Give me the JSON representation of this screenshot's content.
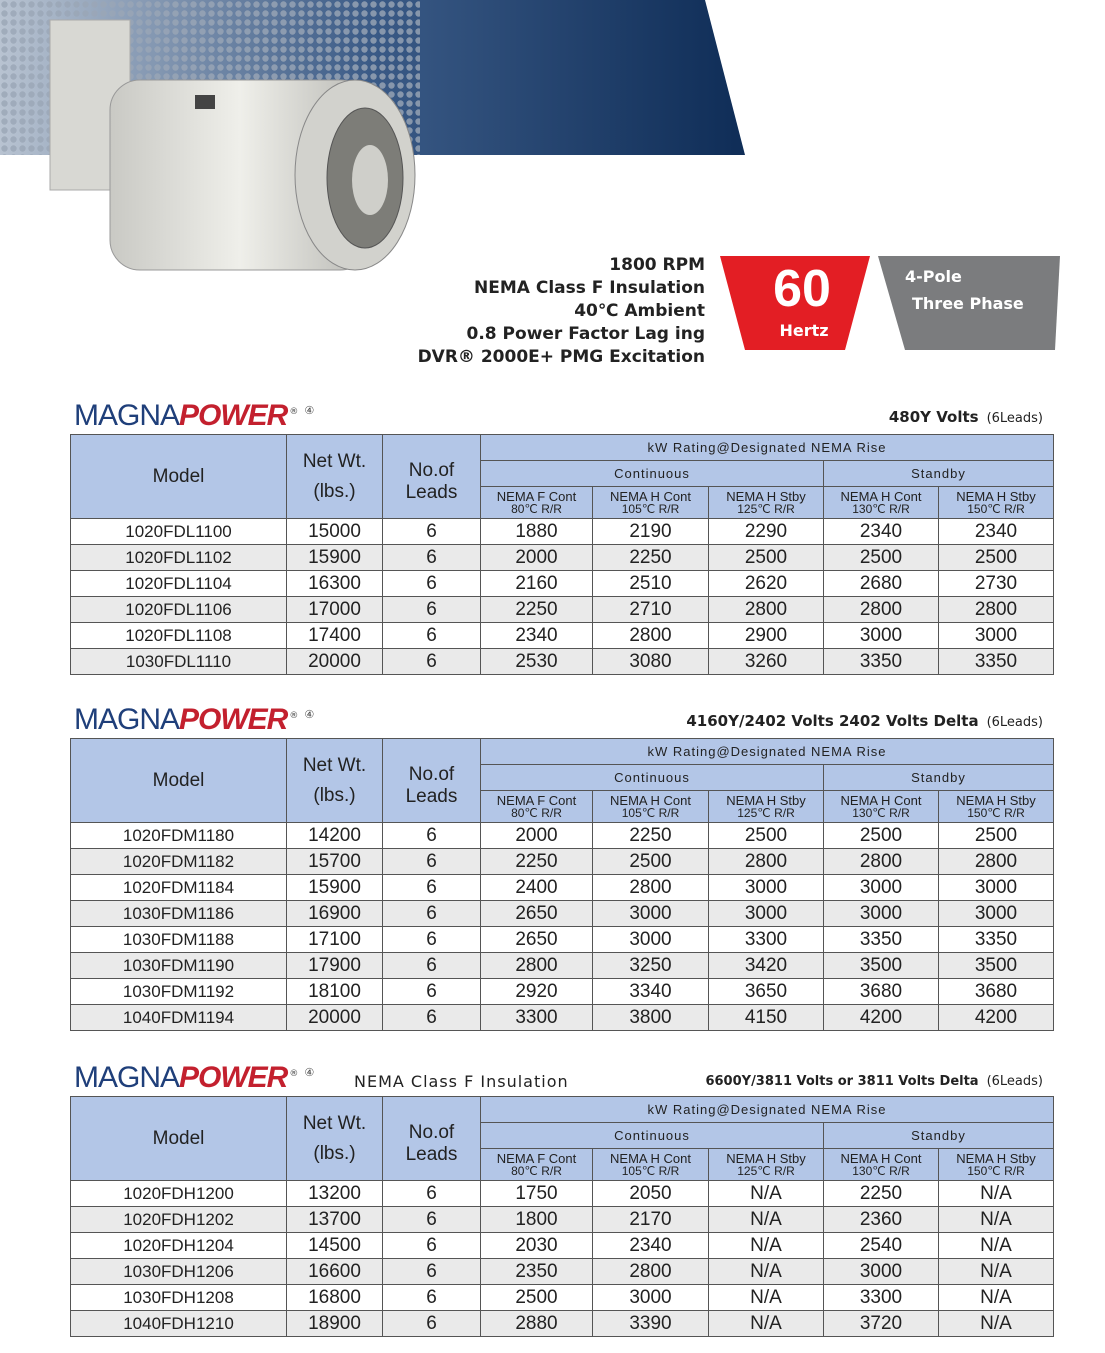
{
  "header": {
    "specs": [
      "1800 RPM",
      "NEMA Class F Insulation",
      "40℃ Ambient",
      "0.8 Power Factor Lag ing",
      "DVR® 2000E+ PMG Excitation"
    ],
    "badge": {
      "frequency": "60",
      "unit": "Hertz",
      "poles": "4-Pole",
      "phase": "Three Phase"
    }
  },
  "brand": {
    "magna": "MAGNA",
    "power": "POWER",
    "registered": "®",
    "mark": "④"
  },
  "table_header": {
    "model": "Model",
    "weight": "Net Wt.",
    "weight_unit": "(lbs.)",
    "leads_1": "No.of",
    "leads_2": "Leads",
    "rating": "kW Rating@Designated NEMA Rise",
    "continuous": "Continuous",
    "standby": "Standby",
    "columns": [
      {
        "name": "NEMA F Cont",
        "rise": "80℃ R/R"
      },
      {
        "name": "NEMA H Cont",
        "rise": "105℃ R/R"
      },
      {
        "name": "NEMA H Stby",
        "rise": "125℃ R/R"
      },
      {
        "name": "NEMA H Cont",
        "rise": "130℃ R/R"
      },
      {
        "name": "NEMA H Stby",
        "rise": "150℃ R/R"
      }
    ]
  },
  "sections": [
    {
      "voltage": "480Y Volts",
      "leads_note": "(6Leads)",
      "rows": [
        [
          "1020FDL1100",
          15000,
          6,
          1880,
          2190,
          2290,
          2340,
          2340
        ],
        [
          "1020FDL1102",
          15900,
          6,
          2000,
          2250,
          2500,
          2500,
          2500
        ],
        [
          "1020FDL1104",
          16300,
          6,
          2160,
          2510,
          2620,
          2680,
          2730
        ],
        [
          "1020FDL1106",
          17000,
          6,
          2250,
          2710,
          2800,
          2800,
          2800
        ],
        [
          "1020FDL1108",
          17400,
          6,
          2340,
          2800,
          2900,
          3000,
          3000
        ],
        [
          "1030FDL1110",
          20000,
          6,
          2530,
          3080,
          3260,
          3350,
          3350
        ]
      ]
    },
    {
      "voltage": "4160Y/2402 Volts  2402 Volts Delta",
      "leads_note": "(6Leads)",
      "rows": [
        [
          "1020FDM1180",
          14200,
          6,
          2000,
          2250,
          2500,
          2500,
          2500
        ],
        [
          "1020FDM1182",
          15700,
          6,
          2250,
          2500,
          2800,
          2800,
          2800
        ],
        [
          "1020FDM1184",
          15900,
          6,
          2400,
          2800,
          3000,
          3000,
          3000
        ],
        [
          "1030FDM1186",
          16900,
          6,
          2650,
          3000,
          3000,
          3000,
          3000
        ],
        [
          "1030FDM1188",
          17100,
          6,
          2650,
          3000,
          3300,
          3350,
          3350
        ],
        [
          "1030FDM1190",
          17900,
          6,
          2800,
          3250,
          3420,
          3500,
          3500
        ],
        [
          "1030FDM1192",
          18100,
          6,
          2920,
          3340,
          3650,
          3680,
          3680
        ],
        [
          "1040FDM1194",
          20000,
          6,
          3300,
          3800,
          4150,
          4200,
          4200
        ]
      ]
    },
    {
      "subtitle": "NEMA Class  F Insulation",
      "voltage": "6600Y/3811 Volts or 3811 Volts Delta",
      "leads_note": "(6Leads)",
      "rows": [
        [
          "1020FDH1200",
          13200,
          6,
          1750,
          2050,
          "N/A",
          2250,
          "N/A"
        ],
        [
          "1020FDH1202",
          13700,
          6,
          1800,
          2170,
          "N/A",
          2360,
          "N/A"
        ],
        [
          "1020FDH1204",
          14500,
          6,
          2030,
          2340,
          "N/A",
          2540,
          "N/A"
        ],
        [
          "1030FDH1206",
          16600,
          6,
          2350,
          2800,
          "N/A",
          3000,
          "N/A"
        ],
        [
          "1030FDH1208",
          16800,
          6,
          2500,
          3000,
          "N/A",
          3300,
          "N/A"
        ],
        [
          "1040FDH1210",
          18900,
          6,
          2880,
          3390,
          "N/A",
          3720,
          "N/A"
        ]
      ]
    }
  ]
}
